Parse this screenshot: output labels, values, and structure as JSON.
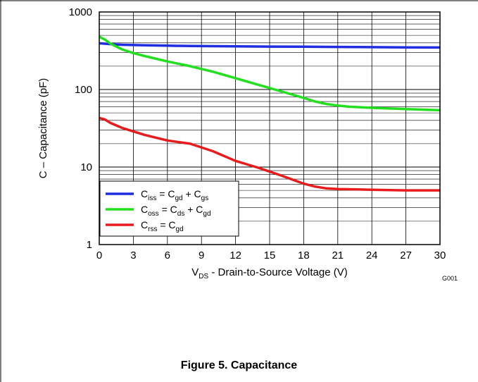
{
  "figure": {
    "caption": "Figure 5. Capacitance",
    "code": "G001"
  },
  "chart_data": {
    "type": "line",
    "xlabel": "V_DS - Drain-to-Source Voltage (V)",
    "xlabel_parts": {
      "main": "V",
      "sub": "DS",
      "rest": " - Drain-to-Source Voltage (V)"
    },
    "ylabel": "C – Capacitance  (pF)",
    "xlim": [
      0,
      30
    ],
    "ylim": [
      1,
      1000
    ],
    "yscale": "log",
    "grid": true,
    "legend_position": "bottom-left",
    "x_ticks": [
      "0",
      "3",
      "6",
      "9",
      "12",
      "15",
      "18",
      "21",
      "24",
      "27",
      "30"
    ],
    "y_ticks": [
      "1",
      "10",
      "100",
      "1000"
    ],
    "series": [
      {
        "name": "Ciss = Cgd + Cgs",
        "legend": [
          {
            "t": "C"
          },
          {
            "s": "iss"
          },
          {
            "t": " = C"
          },
          {
            "s": "gd"
          },
          {
            "t": " + C"
          },
          {
            "s": "gs"
          }
        ],
        "color": "#1f2fe0",
        "x": [
          0,
          1,
          2,
          4,
          6,
          8,
          10,
          12,
          15,
          18,
          21,
          24,
          27,
          30
        ],
        "y": [
          395,
          385,
          378,
          372,
          368,
          364,
          362,
          360,
          358,
          356,
          354,
          352,
          350,
          348
        ]
      },
      {
        "name": "Coss = Cds + Cgd",
        "legend": [
          {
            "t": "C"
          },
          {
            "s": "oss"
          },
          {
            "t": " = C"
          },
          {
            "s": "ds"
          },
          {
            "t": " + C"
          },
          {
            "s": "gd"
          }
        ],
        "color": "#22e01f",
        "x": [
          0,
          0.5,
          1,
          2,
          3,
          4,
          6,
          8,
          10,
          12,
          14,
          16,
          18,
          19,
          20,
          21,
          22,
          24,
          27,
          30
        ],
        "y": [
          480,
          440,
          390,
          330,
          295,
          270,
          230,
          200,
          170,
          140,
          115,
          95,
          78,
          70,
          65,
          62,
          60,
          58,
          56,
          54
        ]
      },
      {
        "name": "Crss = Cgd",
        "legend": [
          {
            "t": "C"
          },
          {
            "s": "rss"
          },
          {
            "t": " =  C"
          },
          {
            "s": "gd"
          }
        ],
        "color": "#e81c1c",
        "x": [
          0,
          0.5,
          1,
          2,
          4,
          6,
          8,
          10,
          12,
          14,
          16,
          18,
          19,
          20,
          21,
          24,
          27,
          30
        ],
        "y": [
          43,
          41,
          37,
          32,
          26,
          22,
          20,
          16,
          12,
          9.8,
          7.8,
          6.1,
          5.6,
          5.3,
          5.2,
          5.1,
          5.0,
          5.0
        ]
      }
    ]
  }
}
